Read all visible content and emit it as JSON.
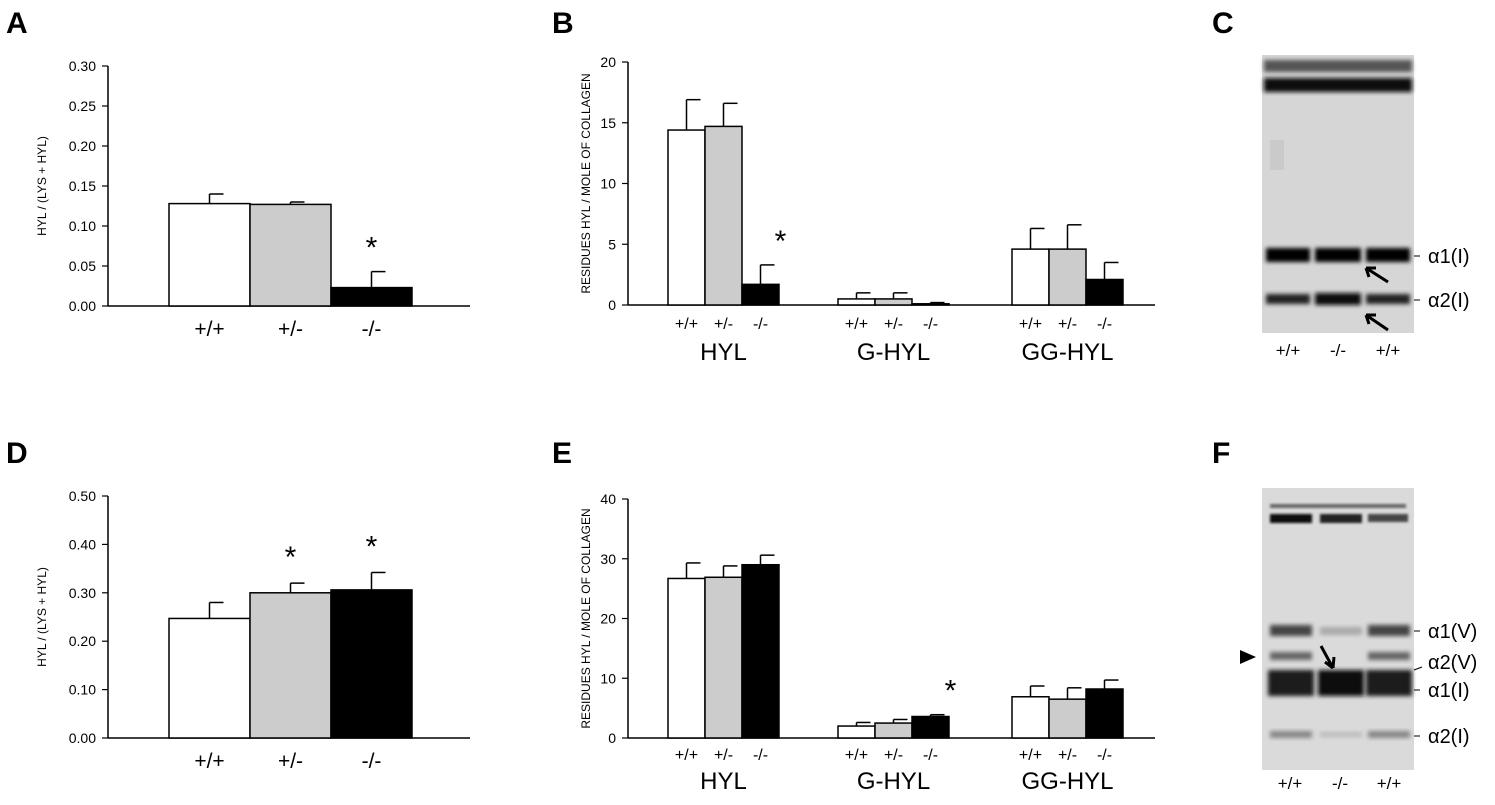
{
  "panels": {
    "A": {
      "letter": "A"
    },
    "B": {
      "letter": "B"
    },
    "C": {
      "letter": "C"
    },
    "D": {
      "letter": "D"
    },
    "E": {
      "letter": "E"
    },
    "F": {
      "letter": "F"
    }
  },
  "colors": {
    "wt": "#ffffff",
    "het": "#cccccc",
    "ko": "#000000"
  },
  "chart_data": [
    {
      "panel": "A",
      "type": "bar",
      "ylabel": "HYL / (LYS + HYL)",
      "ylim": [
        0,
        0.3
      ],
      "yticks": [
        "0.00",
        "0.05",
        "0.10",
        "0.15",
        "0.20",
        "0.25",
        "0.30"
      ],
      "categories": [
        "+/+",
        "+/-",
        "-/-"
      ],
      "values": [
        0.128,
        0.127,
        0.023
      ],
      "errors": [
        0.012,
        0.003,
        0.02
      ],
      "significance": [
        "",
        "",
        "*"
      ]
    },
    {
      "panel": "B",
      "type": "bar",
      "ylabel": "RESIDUES HYL / MOLE OF COLLAGEN",
      "ylim": [
        0,
        20
      ],
      "yticks": [
        "0",
        "5",
        "10",
        "15",
        "20"
      ],
      "groups": [
        "HYL",
        "G-HYL",
        "GG-HYL"
      ],
      "genotypes": [
        "+/+",
        "+/-",
        "-/-"
      ],
      "series": [
        {
          "name": "+/+",
          "values": [
            14.4,
            0.5,
            4.6
          ],
          "errors": [
            2.5,
            0.5,
            1.7
          ]
        },
        {
          "name": "+/-",
          "values": [
            14.7,
            0.5,
            4.6
          ],
          "errors": [
            1.9,
            0.5,
            2.0
          ]
        },
        {
          "name": "-/-",
          "values": [
            1.7,
            0.1,
            2.1
          ],
          "errors": [
            1.6,
            0.1,
            1.4
          ]
        }
      ],
      "significance": [
        {
          "group": "HYL",
          "series": "-/-",
          "mark": "*"
        }
      ]
    },
    {
      "panel": "D",
      "type": "bar",
      "ylabel": "HYL / (LYS + HYL)",
      "ylim": [
        0,
        0.5
      ],
      "yticks": [
        "0.00",
        "0.10",
        "0.20",
        "0.30",
        "0.40",
        "0.50"
      ],
      "categories": [
        "+/+",
        "+/-",
        "-/-"
      ],
      "values": [
        0.247,
        0.3,
        0.306
      ],
      "errors": [
        0.033,
        0.02,
        0.036
      ],
      "significance": [
        "",
        "*",
        "*"
      ]
    },
    {
      "panel": "E",
      "type": "bar",
      "ylabel": "RESIDUES HYL / MOLE OF COLLAGEN",
      "ylim": [
        0,
        40
      ],
      "yticks": [
        "0",
        "10",
        "20",
        "30",
        "40"
      ],
      "groups": [
        "HYL",
        "G-HYL",
        "GG-HYL"
      ],
      "genotypes": [
        "+/+",
        "+/-",
        "-/-"
      ],
      "series": [
        {
          "name": "+/+",
          "values": [
            26.7,
            2.0,
            6.9
          ],
          "errors": [
            2.6,
            0.6,
            1.8
          ]
        },
        {
          "name": "+/-",
          "values": [
            26.9,
            2.5,
            6.5
          ],
          "errors": [
            1.9,
            0.6,
            1.9
          ]
        },
        {
          "name": "-/-",
          "values": [
            29.0,
            3.6,
            8.2
          ],
          "errors": [
            1.6,
            0.3,
            1.5
          ]
        }
      ],
      "significance": [
        {
          "group": "G-HYL",
          "series": "-/-",
          "mark": "*"
        }
      ]
    }
  ],
  "gels": {
    "C": {
      "lanes": [
        "+/+",
        "-/-",
        "+/+"
      ],
      "bands": [
        "α1(I)",
        "α2(I)"
      ]
    },
    "F": {
      "lanes": [
        "+/+",
        "-/-",
        "+/+"
      ],
      "bands": [
        "α1(V)",
        "α2(V)",
        "α1(I)",
        "α2(I)"
      ]
    }
  }
}
